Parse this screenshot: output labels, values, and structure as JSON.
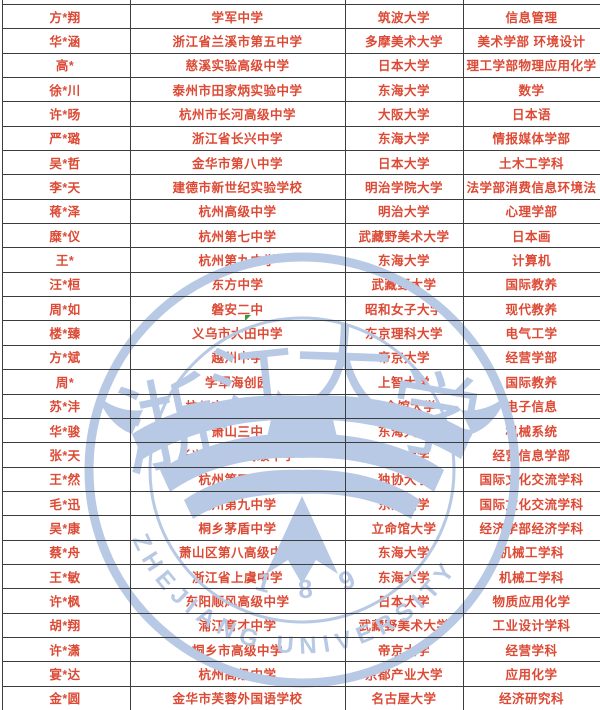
{
  "table": {
    "rows": [
      [
        "方*翔",
        "学军中学",
        "筑波大学",
        "信息管理"
      ],
      [
        "华*涵",
        "浙江省兰溪市第五中学",
        "多摩美术大学",
        "美术学部 环境设计"
      ],
      [
        "高*",
        "慈溪实验高级中学",
        "日本大学",
        "理工学部物理应用化学"
      ],
      [
        "徐*川",
        "泰州市田家炳实验中学",
        "东海大学",
        "数学"
      ],
      [
        "许*旸",
        "杭州市长河高级中学",
        "大阪大学",
        "日本语"
      ],
      [
        "严*璐",
        "浙江省长兴中学",
        "东海大学",
        "情报媒体学部"
      ],
      [
        "吴*哲",
        "金华市第八中学",
        "日本大学",
        "土木工学科"
      ],
      [
        "李*天",
        "建德市新世纪实验学校",
        "明治学院大学",
        "法学部消费信息环境法"
      ],
      [
        "蒋*泽",
        "杭州高级中学",
        "明治大学",
        "心理学部"
      ],
      [
        "糜*仪",
        "杭州第七中学",
        "武藏野美术大学",
        "日本画"
      ],
      [
        "王*",
        "杭州第九中学",
        "东海大学",
        "计算机"
      ],
      [
        "汪*桓",
        "东方中学",
        "武藏野大学",
        "国际教养"
      ],
      [
        "周*如",
        "磐安二中",
        "昭和女子大学",
        "现代教养"
      ],
      [
        "楼*臻",
        "义乌市大田中学",
        "东京理科大学",
        "电气工学"
      ],
      [
        "方*斌",
        "越州中学",
        "帝京大学",
        "经营学部"
      ],
      [
        "周*",
        "学军海创园",
        "上智大学",
        "国际教养"
      ],
      [
        "苏*沣",
        "杭州市田家炳中学",
        "立命馆大学",
        "电子信息"
      ],
      [
        "华*骏",
        "萧山三中",
        "东海大学",
        "机械系统"
      ],
      [
        "张*天",
        "长兴南太湖高级中学",
        "帝京大学",
        "经营信息学部"
      ],
      [
        "王*然",
        "杭州第四中学",
        "独协大学",
        "国际文化交流学科"
      ],
      [
        "毛*迅",
        "杭州第九中学",
        "东洋大学",
        "国际文化交流学科"
      ],
      [
        "吴*康",
        "桐乡茅盾中学",
        "立命馆大学",
        "经济学部经济学科"
      ],
      [
        "蔡*舟",
        "萧山区第八高级中学",
        "东海大学",
        "机械工学科"
      ],
      [
        "王*敏",
        "浙江省上虞中学",
        "东海大学",
        "机械工学科"
      ],
      [
        "许*枫",
        "东阳顺风高级中学",
        "日本大学",
        "物质应用化学"
      ],
      [
        "胡*翔",
        "浦江育才中学",
        "武藏野美术大学",
        "工业设计学科"
      ],
      [
        "许*潇",
        "桐乡市高级中学",
        "帝京大学",
        "经营学科"
      ],
      [
        "宴*达",
        "杭州高级中学",
        "京都产业大学",
        "应用化学"
      ],
      [
        "金*圆",
        "金华市芙蓉外国语学校",
        "名古屋大学",
        "经济研究科"
      ]
    ]
  },
  "watermark": {
    "latin_text": "ZHEJIANG  UNIVERSITY",
    "year": "1 8 9 7",
    "chinese_chars": [
      "浙",
      "江",
      "大",
      "学"
    ],
    "color": "#b7c9e5"
  },
  "colors": {
    "text": "#dc4a35",
    "border": "#3c3c3c",
    "marker_green": "#3a9a3a",
    "background": "#ffffff"
  }
}
